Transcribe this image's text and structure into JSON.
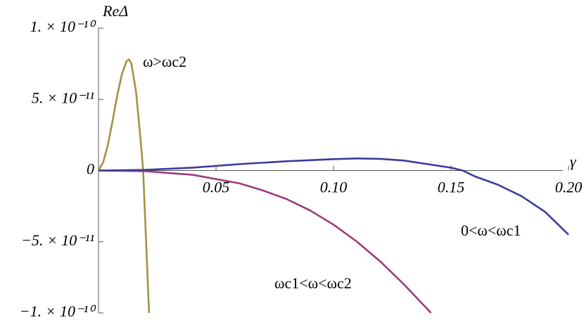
{
  "chart_data": {
    "type": "line",
    "xlabel": "γ",
    "ylabel": "ReΔ",
    "xlim": [
      0,
      0.2
    ],
    "ylim": [
      -1e-10,
      1e-10
    ],
    "xticks": [
      0.05,
      {
        "value": 0.1,
        "label": "0.10"
      },
      0.15,
      {
        "value": 0.2,
        "label": "0.20"
      }
    ],
    "yticks": [
      {
        "value": -1e-10,
        "label": "−1. × 10⁻¹⁰"
      },
      {
        "value": -5e-11,
        "label": "−5. × 10⁻¹¹"
      },
      0,
      {
        "value": 5e-11,
        "label": "5. × 10⁻¹¹"
      },
      {
        "value": 1e-10,
        "label": "1. × 10⁻¹⁰"
      }
    ],
    "series": [
      {
        "name": "ω>ωc2",
        "color": "#a39243",
        "x": [
          0,
          0.002,
          0.004,
          0.006,
          0.008,
          0.01,
          0.012,
          0.013,
          0.014,
          0.016,
          0.018,
          0.019,
          0.02,
          0.0215
        ],
        "values": [
          0,
          6e-12,
          1.8e-11,
          3.5e-11,
          5.3e-11,
          6.8e-11,
          7.7e-11,
          7.8e-11,
          7.5e-11,
          5.5e-11,
          2e-11,
          0,
          -4e-11,
          -1e-10
        ]
      },
      {
        "name": "ωc1<ω<ωc2",
        "color": "#9b3a7a",
        "x": [
          0,
          0.02,
          0.04,
          0.06,
          0.07,
          0.08,
          0.09,
          0.1,
          0.11,
          0.12,
          0.13,
          0.1415
        ],
        "values": [
          0,
          -5e-13,
          -3e-12,
          -9e-12,
          -1.4e-11,
          -2e-11,
          -2.8e-11,
          -3.8e-11,
          -5e-11,
          -6.4e-11,
          -8e-11,
          -1e-10
        ]
      },
      {
        "name": "0<ω<ωc1",
        "color": "#3b3b9e",
        "x": [
          0,
          0.02,
          0.04,
          0.06,
          0.08,
          0.1,
          0.11,
          0.12,
          0.13,
          0.14,
          0.15,
          0.155,
          0.16,
          0.17,
          0.18,
          0.19,
          0.2
        ],
        "values": [
          0,
          5e-13,
          2e-12,
          4.5e-12,
          6.5e-12,
          8e-12,
          8.5e-12,
          8.2e-12,
          7e-12,
          4.5e-12,
          2e-12,
          0,
          -4e-12,
          -1e-11,
          -1.8e-11,
          -2.9e-11,
          -4.5e-11
        ]
      }
    ]
  }
}
